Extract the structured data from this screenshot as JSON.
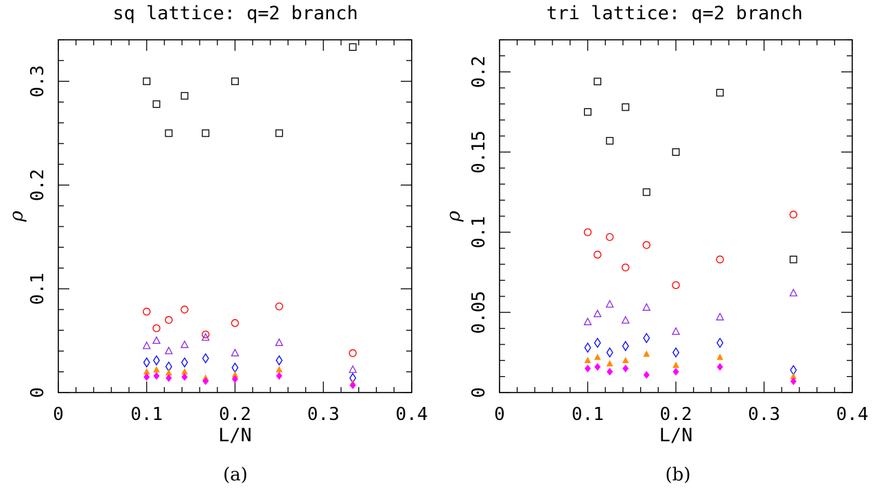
{
  "chart_data": [
    {
      "type": "scatter",
      "title": "sq lattice: q=2 branch",
      "xlabel": "L/N",
      "ylabel": "ρ",
      "panel_label": "(a)",
      "xlim": [
        0,
        0.4
      ],
      "ylim": [
        0,
        0.34
      ],
      "xticks": [
        "0",
        "0.1",
        "0.2",
        "0.3",
        "0.4"
      ],
      "yticks": [
        "0",
        "0.1",
        "0.2",
        "0.3"
      ],
      "xtick_values": [
        0,
        0.1,
        0.2,
        0.3,
        0.4
      ],
      "ytick_values": [
        0,
        0.1,
        0.2,
        0.3
      ],
      "x": [
        0.1,
        0.1111,
        0.125,
        0.1429,
        0.1667,
        0.2,
        0.25,
        0.3333
      ],
      "series": [
        {
          "marker": "open-square",
          "color": "#000000",
          "values": [
            0.3,
            0.278,
            0.25,
            0.286,
            0.25,
            0.3,
            0.25,
            0.333
          ]
        },
        {
          "marker": "open-circle",
          "color": "#ff0000",
          "values": [
            0.078,
            0.062,
            0.07,
            0.08,
            0.056,
            0.067,
            0.083,
            0.038
          ]
        },
        {
          "marker": "open-triangle",
          "color": "#8a2be2",
          "values": [
            0.045,
            0.05,
            0.04,
            0.046,
            0.053,
            0.038,
            0.048,
            0.022
          ]
        },
        {
          "marker": "open-diamond",
          "color": "#0000ff",
          "values": [
            0.029,
            0.031,
            0.025,
            0.029,
            0.033,
            0.024,
            0.031,
            0.014
          ]
        },
        {
          "marker": "filled-triangle",
          "color": "#ff8c00",
          "values": [
            0.02,
            0.022,
            0.019,
            0.02,
            0.014,
            0.017,
            0.022,
            0.009
          ]
        },
        {
          "marker": "filled-diamond",
          "color": "#ff00ff",
          "values": [
            0.015,
            0.016,
            0.014,
            0.015,
            0.011,
            0.013,
            0.016,
            0.007
          ]
        }
      ]
    },
    {
      "type": "scatter",
      "title": "tri lattice: q=2 branch",
      "xlabel": "L/N",
      "ylabel": "ρ",
      "panel_label": "(b)",
      "xlim": [
        0,
        0.4
      ],
      "ylim": [
        0,
        0.22
      ],
      "xticks": [
        "0",
        "0.1",
        "0.2",
        "0.3",
        "0.4"
      ],
      "yticks": [
        "0",
        "0.05",
        "0.1",
        "0.15",
        "0.2"
      ],
      "xtick_values": [
        0,
        0.1,
        0.2,
        0.3,
        0.4
      ],
      "ytick_values": [
        0,
        0.05,
        0.1,
        0.15,
        0.2
      ],
      "x": [
        0.1,
        0.1111,
        0.125,
        0.1429,
        0.1667,
        0.2,
        0.25,
        0.3333
      ],
      "series": [
        {
          "marker": "open-square",
          "color": "#000000",
          "values": [
            0.175,
            0.194,
            0.157,
            0.178,
            0.125,
            0.15,
            0.187,
            0.083
          ]
        },
        {
          "marker": "open-circle",
          "color": "#ff0000",
          "values": [
            0.1,
            0.086,
            0.097,
            0.078,
            0.092,
            0.067,
            0.083,
            0.111
          ]
        },
        {
          "marker": "open-triangle",
          "color": "#8a2be2",
          "values": [
            0.044,
            0.049,
            0.055,
            0.045,
            0.053,
            0.038,
            0.047,
            0.062
          ]
        },
        {
          "marker": "open-diamond",
          "color": "#0000ff",
          "values": [
            0.028,
            0.031,
            0.025,
            0.029,
            0.034,
            0.025,
            0.031,
            0.014
          ]
        },
        {
          "marker": "filled-triangle",
          "color": "#ff8c00",
          "values": [
            0.02,
            0.022,
            0.018,
            0.02,
            0.024,
            0.017,
            0.022,
            0.01
          ]
        },
        {
          "marker": "filled-diamond",
          "color": "#ff00ff",
          "values": [
            0.015,
            0.016,
            0.013,
            0.015,
            0.011,
            0.013,
            0.016,
            0.007
          ]
        }
      ]
    }
  ]
}
